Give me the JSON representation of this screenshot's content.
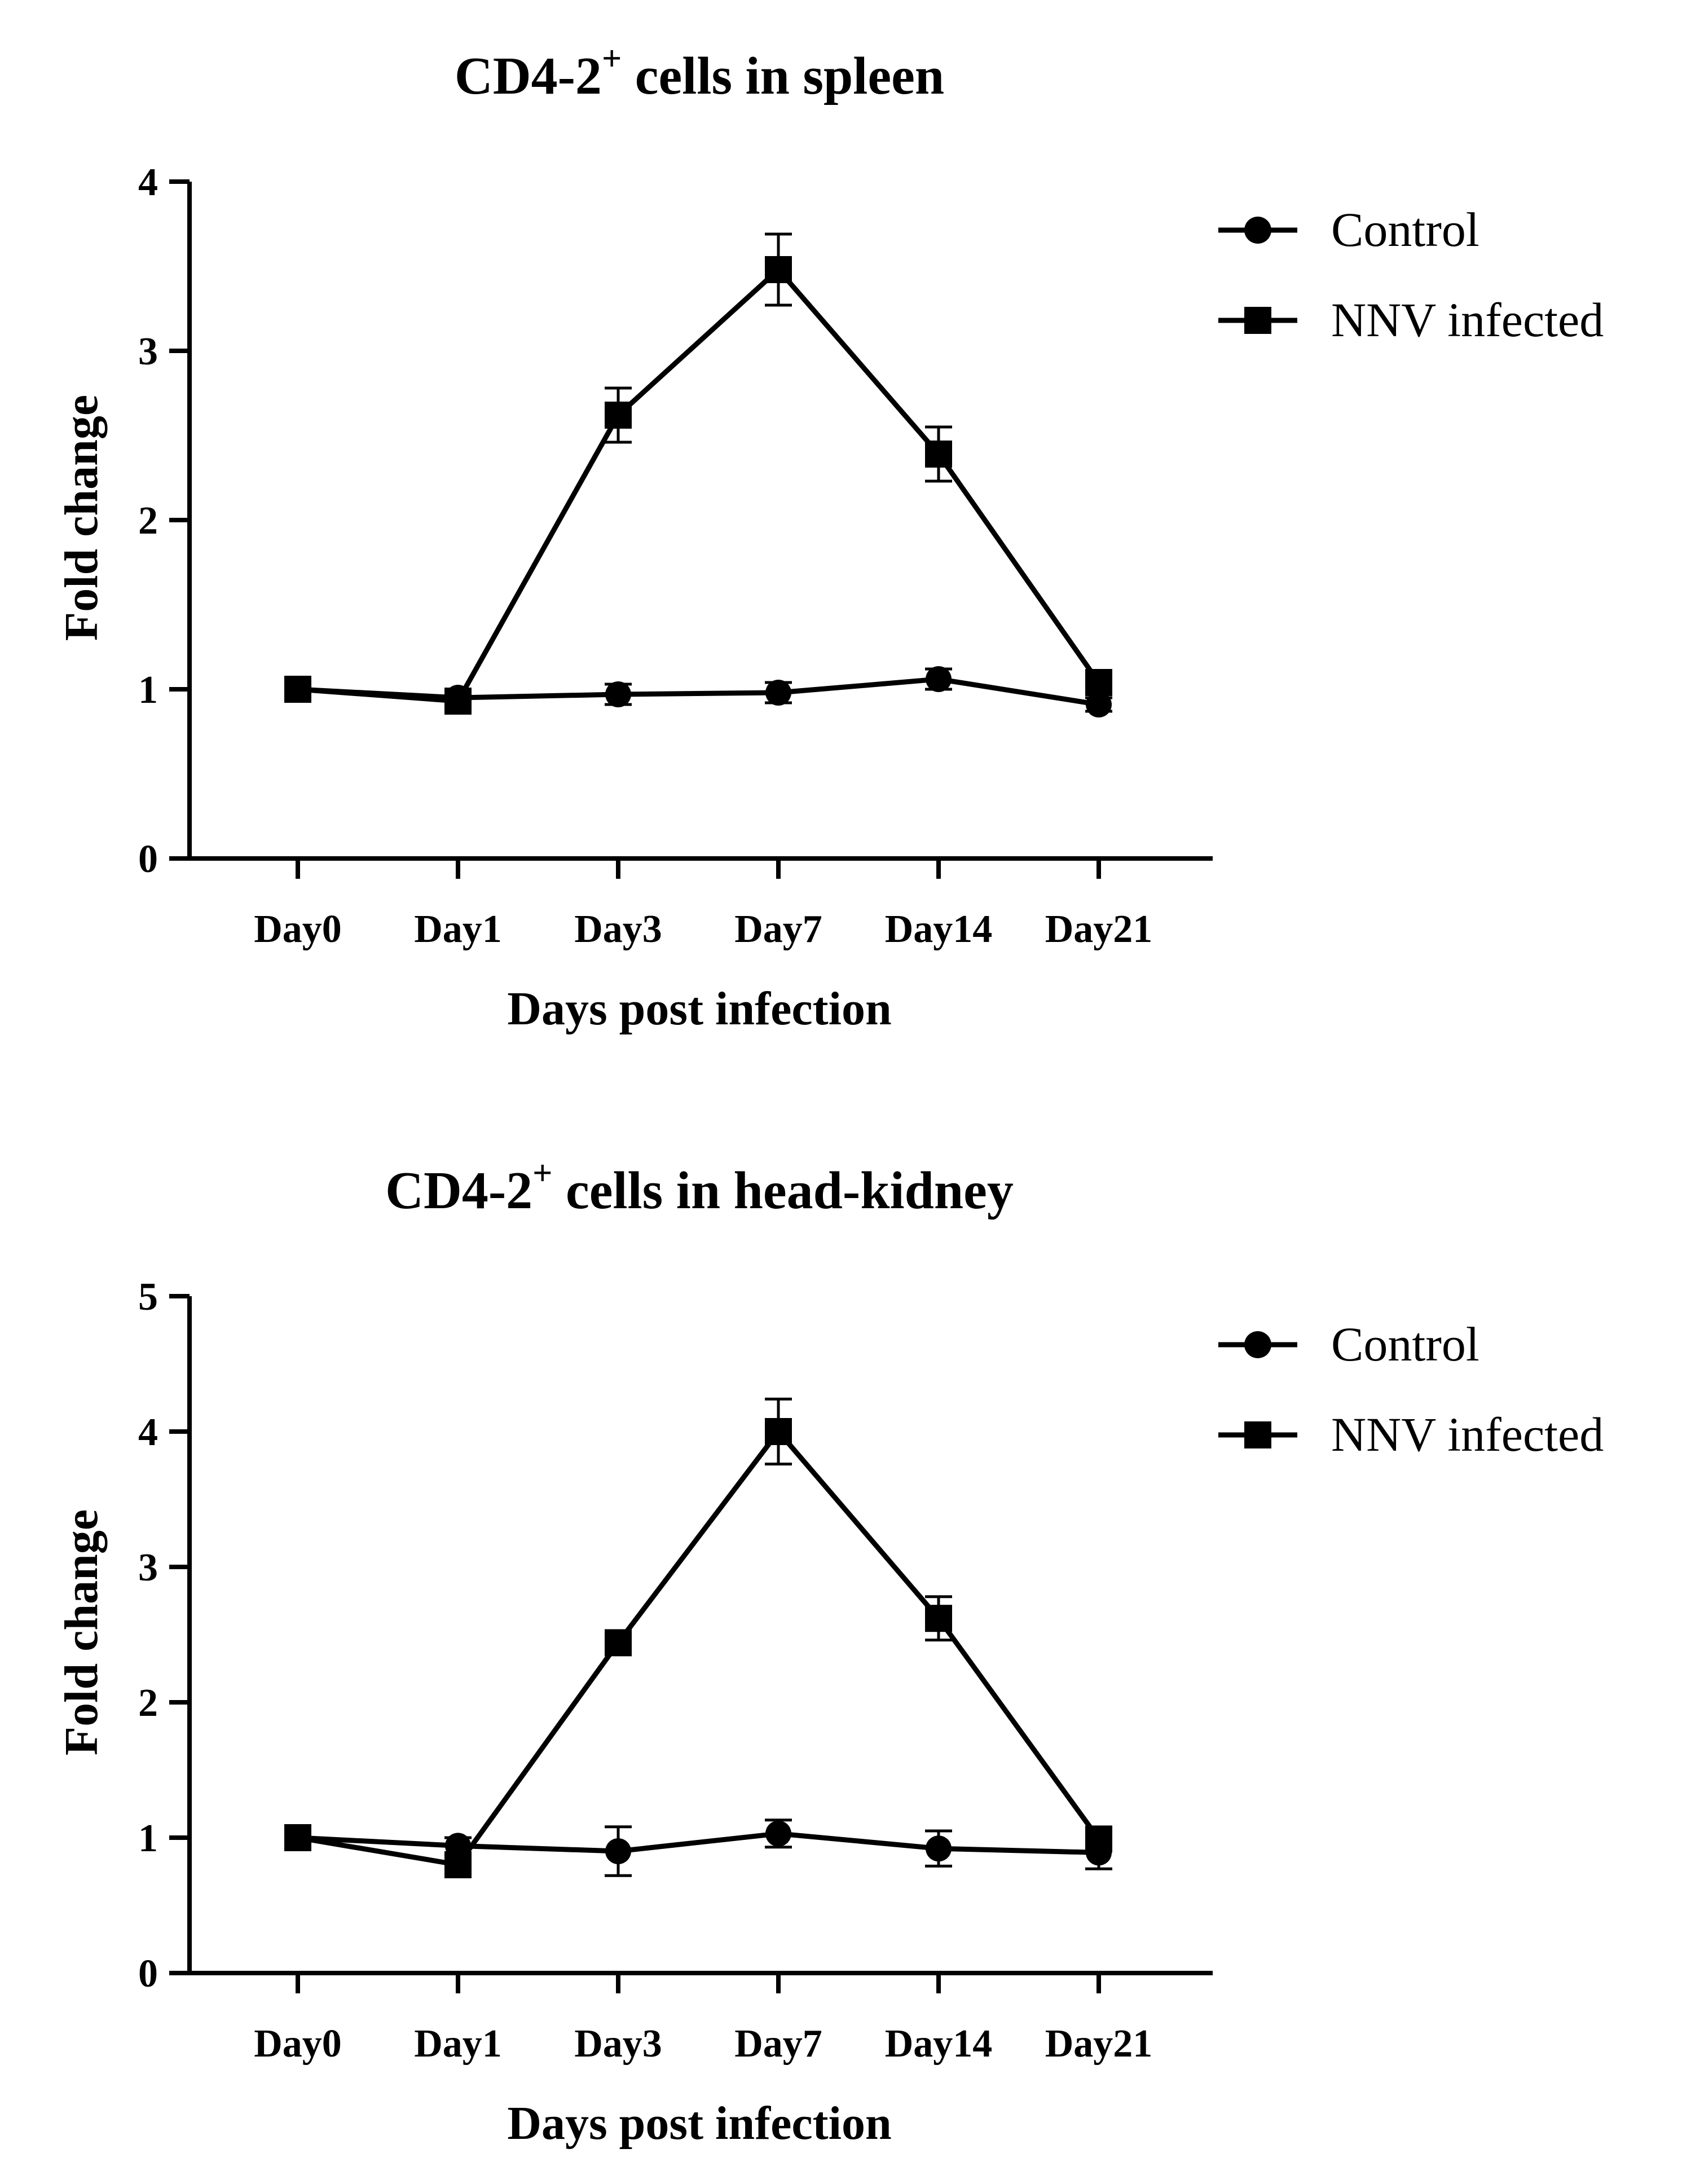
{
  "chart_data": [
    {
      "type": "line",
      "title": "CD4-2",
      "title_sup": "+",
      "title_rest": " cells in spleen",
      "xlabel": "Days post infection",
      "ylabel": "Fold change",
      "categories": [
        "Day0",
        "Day1",
        "Day3",
        "Day7",
        "Day14",
        "Day21"
      ],
      "ylim": [
        0,
        4
      ],
      "yticks": [
        "0",
        "1",
        "2",
        "3",
        "4"
      ],
      "legend_position": "top-right",
      "series": [
        {
          "name": "Control",
          "marker": "circle",
          "values": [
            1.0,
            0.95,
            0.97,
            0.98,
            1.06,
            0.91
          ],
          "errors": [
            0.04,
            0.05,
            0.06,
            0.06,
            0.06,
            0.04
          ]
        },
        {
          "name": "NNV infected",
          "marker": "square",
          "values": [
            1.0,
            0.93,
            2.62,
            3.48,
            2.39,
            1.04
          ],
          "errors": [
            0.04,
            0.04,
            0.16,
            0.21,
            0.16,
            0.05
          ]
        }
      ]
    },
    {
      "type": "line",
      "title": "CD4-2",
      "title_sup": "+",
      "title_rest": " cells in head-kidney",
      "xlabel": "Days post infection",
      "ylabel": "Fold change",
      "categories": [
        "Day0",
        "Day1",
        "Day3",
        "Day7",
        "Day14",
        "Day21"
      ],
      "ylim": [
        0,
        5
      ],
      "yticks": [
        "0",
        "1",
        "2",
        "3",
        "4",
        "5"
      ],
      "legend_position": "top-right",
      "series": [
        {
          "name": "Control",
          "marker": "circle",
          "values": [
            1.0,
            0.94,
            0.9,
            1.03,
            0.92,
            0.89
          ],
          "errors": [
            0.05,
            0.06,
            0.18,
            0.1,
            0.13,
            0.12
          ]
        },
        {
          "name": "NNV infected",
          "marker": "square",
          "values": [
            1.0,
            0.8,
            2.44,
            4.0,
            2.62,
            0.99
          ],
          "errors": [
            0.04,
            0.07,
            0.08,
            0.24,
            0.16,
            0.06
          ]
        }
      ]
    }
  ]
}
